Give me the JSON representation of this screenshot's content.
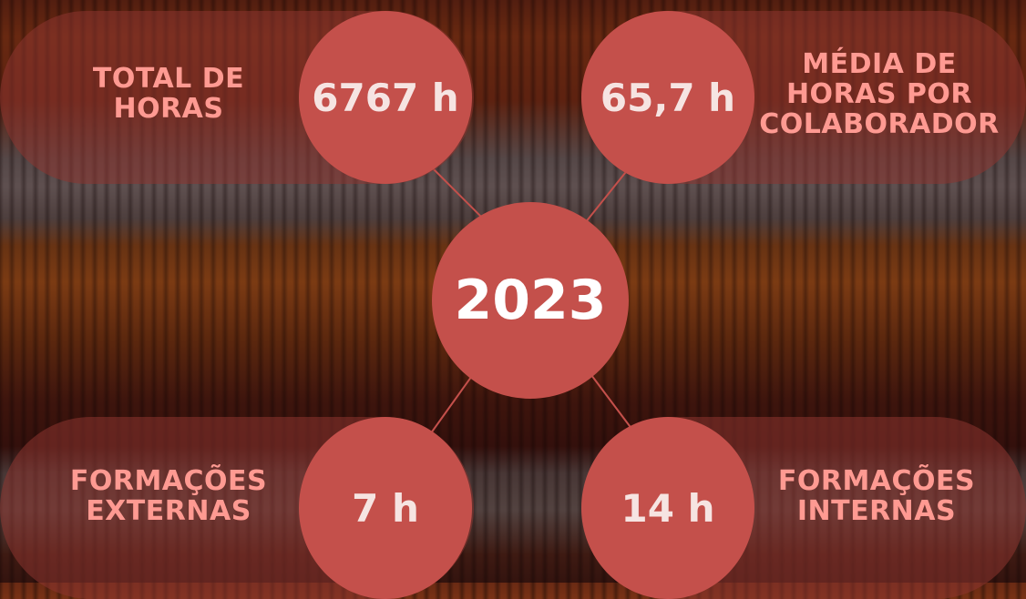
{
  "year": "2023",
  "stats": {
    "total_hours": {
      "label_line1": "TOTAL DE",
      "label_line2": "HORAS",
      "value": "6767 h"
    },
    "average_hours": {
      "label_line1": "MÉDIA DE",
      "label_line2": "HORAS POR",
      "label_line3": "COLABORADOR",
      "value": "65,7 h"
    },
    "external_trainings": {
      "label_line1": "FORMAÇÕES",
      "label_line2": "EXTERNAS",
      "value": "7 h"
    },
    "internal_trainings": {
      "label_line1": "FORMAÇÕES",
      "label_line2": "INTERNAS",
      "value": "14 h"
    }
  },
  "colors": {
    "circle": "#c4504b",
    "pill": "#8c3430",
    "label": "#ff9a92",
    "value_text": "#f6e4e2"
  }
}
